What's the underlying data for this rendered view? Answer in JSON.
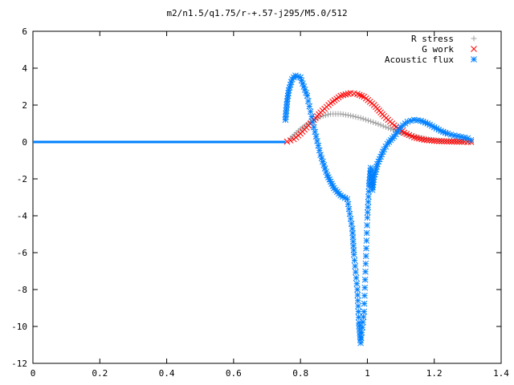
{
  "chart_data": {
    "type": "scatter",
    "title": "m2/n1.5/q1.75/r-+.57-j295/M5.0/512",
    "xlabel": "",
    "ylabel": "",
    "xlim": [
      0,
      1.4
    ],
    "ylim": [
      -12,
      6
    ],
    "xticks": [
      "0",
      "0.2",
      "0.4",
      "0.6",
      "0.8",
      "1",
      "1.2",
      "1.4"
    ],
    "yticks": [
      "6",
      "4",
      "2",
      "0",
      "-2",
      "-4",
      "-6",
      "-8",
      "-10",
      "-12"
    ],
    "grid": false,
    "legend_position": "top-right",
    "series": [
      {
        "name": "R stress",
        "marker": "plus",
        "color": "#a0a0a0",
        "x": [
          0.77,
          0.8,
          0.83,
          0.86,
          0.89,
          0.92,
          0.95,
          0.98,
          1.01,
          1.04,
          1.07,
          1.1,
          1.13,
          1.16,
          1.19,
          1.22,
          1.25,
          1.28,
          1.31
        ],
        "y": [
          0.2,
          0.7,
          1.1,
          1.38,
          1.52,
          1.52,
          1.43,
          1.3,
          1.12,
          0.92,
          0.7,
          0.5,
          0.34,
          0.22,
          0.13,
          0.07,
          0.04,
          0.02,
          0.01
        ]
      },
      {
        "name": "G work",
        "marker": "x",
        "color": "#ff0000",
        "x": [
          0.76,
          0.78,
          0.8,
          0.83,
          0.86,
          0.89,
          0.92,
          0.95,
          0.97,
          0.99,
          1.02,
          1.05,
          1.08,
          1.11,
          1.14,
          1.17,
          1.2,
          1.23,
          1.26,
          1.29,
          1.31
        ],
        "y": [
          0.02,
          0.15,
          0.45,
          1.0,
          1.6,
          2.1,
          2.5,
          2.65,
          2.6,
          2.45,
          2.0,
          1.4,
          0.9,
          0.5,
          0.25,
          0.12,
          0.06,
          0.03,
          0.02,
          0.01,
          0.0
        ]
      },
      {
        "name": "Acoustic flux",
        "marker": "asterisk",
        "color": "#0080ff",
        "x": [
          0.755,
          0.76,
          0.765,
          0.775,
          0.785,
          0.8,
          0.82,
          0.84,
          0.86,
          0.88,
          0.9,
          0.92,
          0.94,
          0.955,
          0.96,
          0.97,
          0.975,
          0.98,
          0.99,
          0.995,
          1.0,
          1.005,
          1.01,
          1.015,
          1.02,
          1.03,
          1.04,
          1.05,
          1.06,
          1.08,
          1.1,
          1.12,
          1.14,
          1.16,
          1.18,
          1.2,
          1.22,
          1.24,
          1.26,
          1.28,
          1.3,
          1.31
        ],
        "y": [
          1.2,
          2.2,
          2.8,
          3.4,
          3.6,
          3.5,
          2.5,
          0.8,
          -0.7,
          -1.8,
          -2.5,
          -2.9,
          -3.1,
          -4.7,
          -6.1,
          -8.0,
          -9.8,
          -10.9,
          -9.2,
          -6.6,
          -4.1,
          -2.4,
          -1.4,
          -2.6,
          -1.9,
          -1.2,
          -0.8,
          -0.4,
          -0.1,
          0.3,
          0.8,
          1.1,
          1.2,
          1.15,
          1.0,
          0.8,
          0.6,
          0.45,
          0.35,
          0.28,
          0.2,
          0.1
        ]
      }
    ]
  }
}
